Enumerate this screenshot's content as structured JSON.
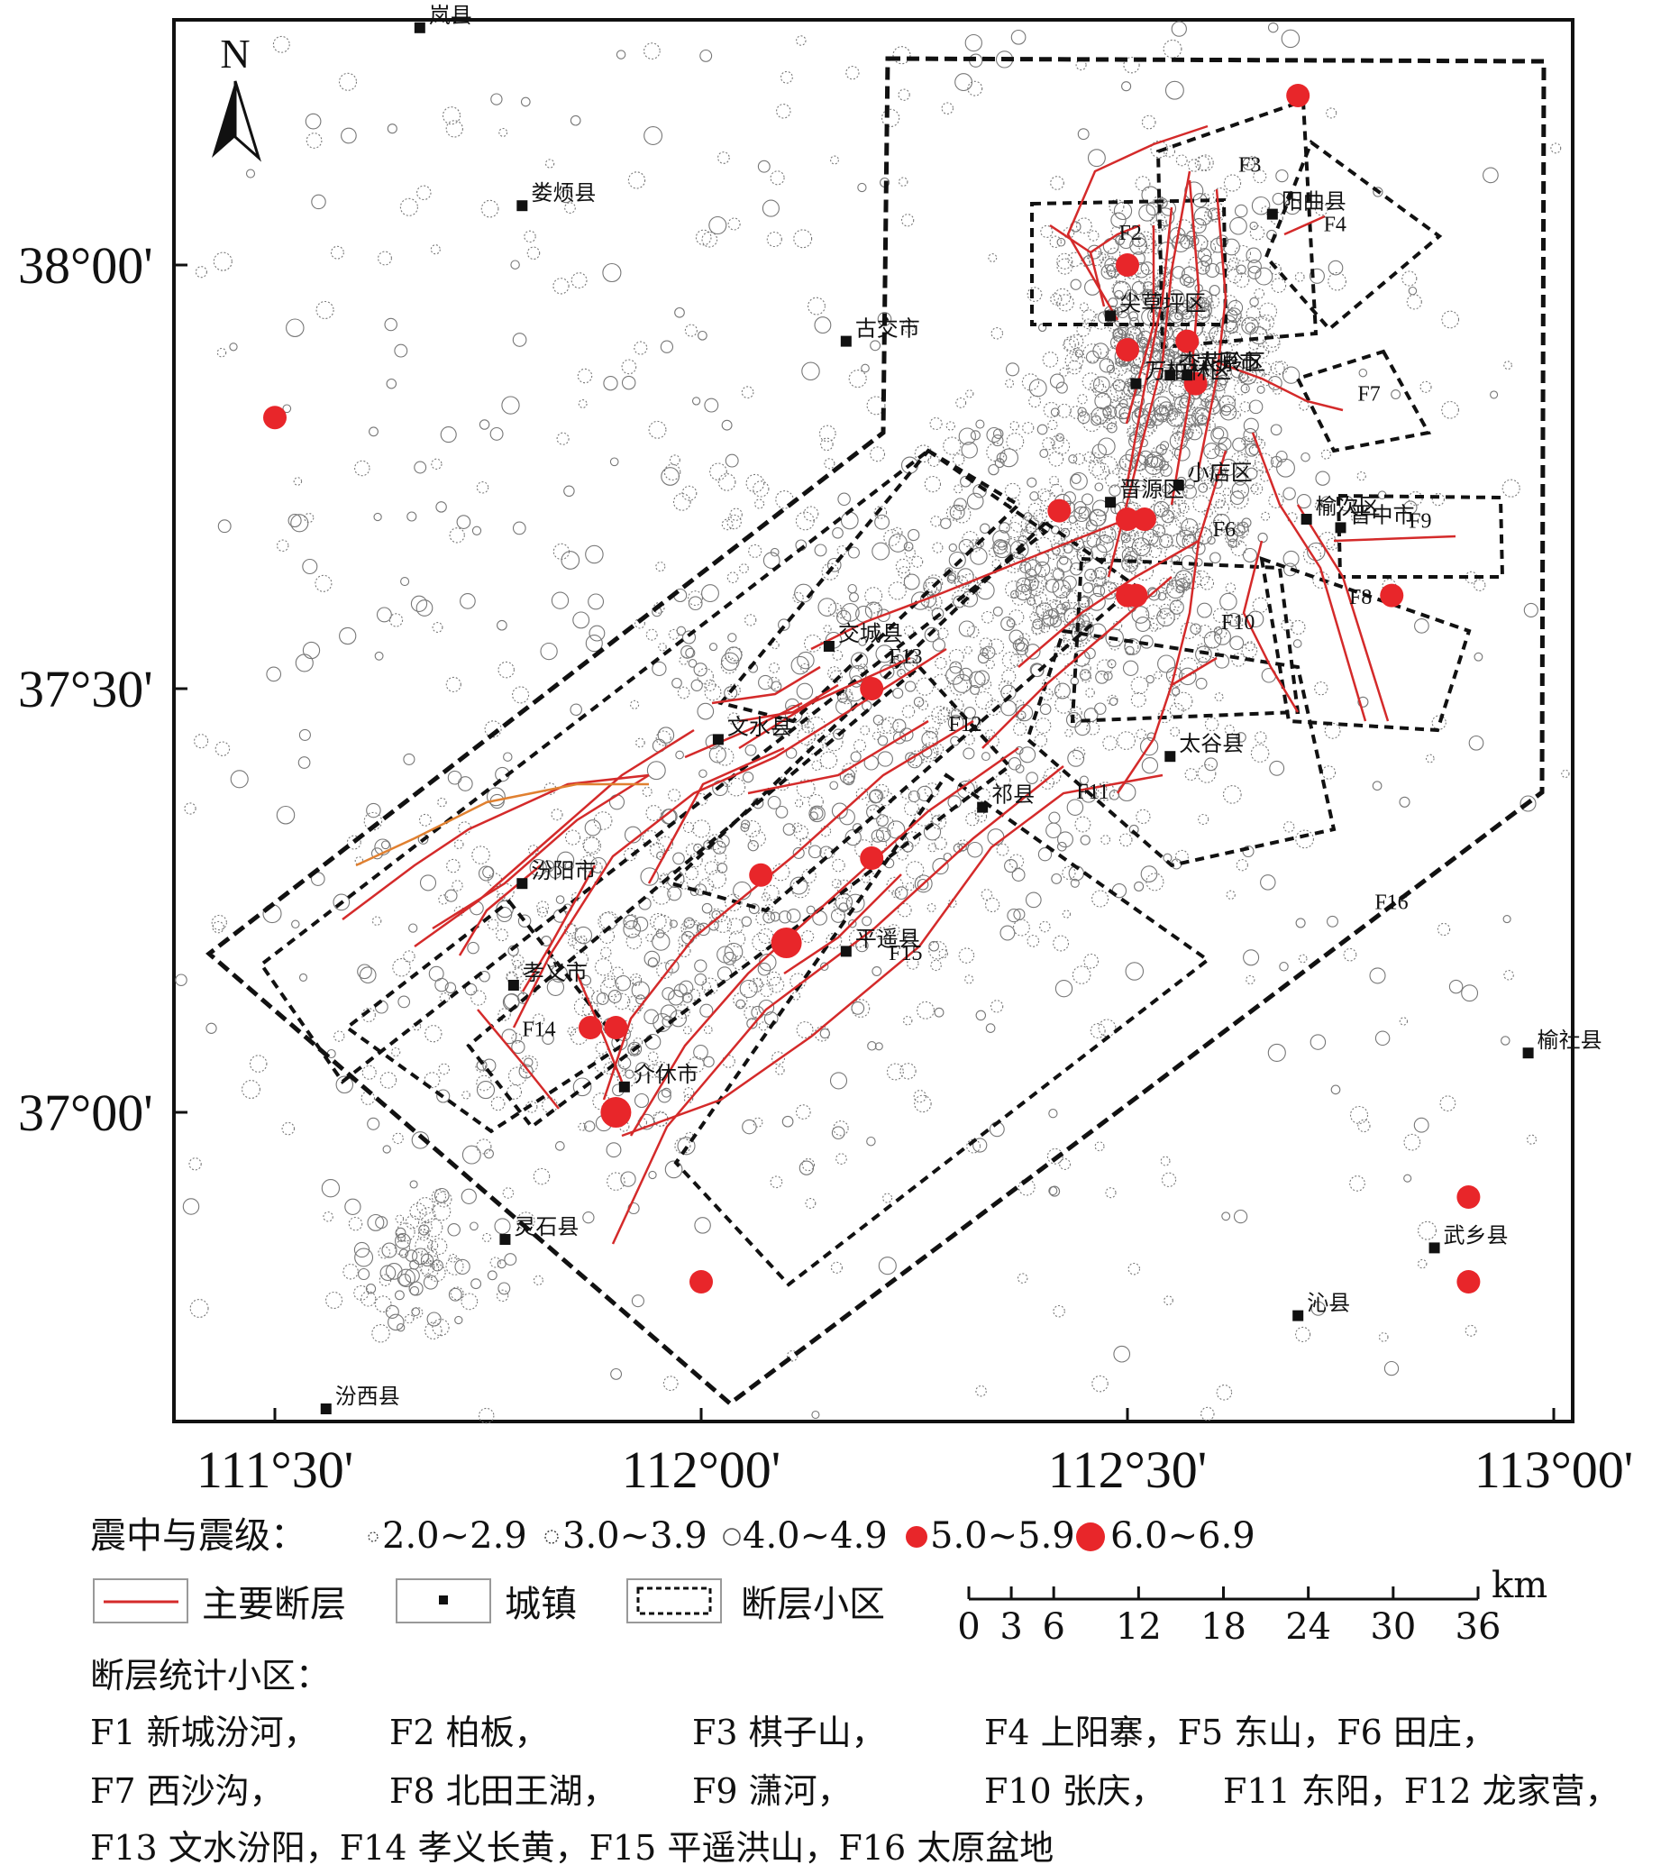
{
  "north_label": "N",
  "lat_labels": [
    {
      "text": "38°00'",
      "lat": 38.0
    },
    {
      "text": "37°30'",
      "lat": 37.5
    },
    {
      "text": "37°00'",
      "lat": 37.0
    }
  ],
  "lon_labels": [
    {
      "text": "111°30'",
      "lon": 111.5
    },
    {
      "text": "112°00'",
      "lon": 112.0
    },
    {
      "text": "112°30'",
      "lon": 112.5
    },
    {
      "text": "113°00'",
      "lon": 113.0
    }
  ],
  "towns": [
    {
      "name": "岚县",
      "lon": 111.67,
      "lat": 38.28
    },
    {
      "name": "娄烦县",
      "lon": 111.79,
      "lat": 38.07
    },
    {
      "name": "古交市",
      "lon": 112.17,
      "lat": 37.91
    },
    {
      "name": "阳曲县",
      "lon": 112.67,
      "lat": 38.06
    },
    {
      "name": "尖草坪区",
      "lon": 112.48,
      "lat": 37.94
    },
    {
      "name": "杏花岭区",
      "lon": 112.55,
      "lat": 37.87
    },
    {
      "name": "太原市",
      "lon": 112.57,
      "lat": 37.87
    },
    {
      "name": "万柏林区",
      "lon": 112.51,
      "lat": 37.86
    },
    {
      "name": "小店区",
      "lon": 112.56,
      "lat": 37.74
    },
    {
      "name": "晋源区",
      "lon": 112.48,
      "lat": 37.72
    },
    {
      "name": "榆次区",
      "lon": 112.71,
      "lat": 37.7
    },
    {
      "name": "晋中市",
      "lon": 112.75,
      "lat": 37.69
    },
    {
      "name": "交城县",
      "lon": 112.15,
      "lat": 37.55
    },
    {
      "name": "文水县",
      "lon": 112.02,
      "lat": 37.44
    },
    {
      "name": "太谷县",
      "lon": 112.55,
      "lat": 37.42
    },
    {
      "name": "祁县",
      "lon": 112.33,
      "lat": 37.36
    },
    {
      "name": "汾阳市",
      "lon": 111.79,
      "lat": 37.27
    },
    {
      "name": "平遥县",
      "lon": 112.17,
      "lat": 37.19
    },
    {
      "name": "孝义市",
      "lon": 111.78,
      "lat": 37.15
    },
    {
      "name": "介休市",
      "lon": 111.91,
      "lat": 37.03
    },
    {
      "name": "榆社县",
      "lon": 112.97,
      "lat": 37.07
    },
    {
      "name": "灵石县",
      "lon": 111.77,
      "lat": 36.85
    },
    {
      "name": "武乡县",
      "lon": 112.86,
      "lat": 36.84
    },
    {
      "name": "沁县",
      "lon": 112.7,
      "lat": 36.76
    },
    {
      "name": "汾西县",
      "lon": 111.56,
      "lat": 36.65
    }
  ],
  "fault_zone_labels": [
    {
      "text": "F2",
      "lon": 112.49,
      "lat": 38.03
    },
    {
      "text": "F3",
      "lon": 112.63,
      "lat": 38.11
    },
    {
      "text": "F4",
      "lon": 112.73,
      "lat": 38.04
    },
    {
      "text": "F6",
      "lon": 112.6,
      "lat": 37.68
    },
    {
      "text": "F7",
      "lon": 112.77,
      "lat": 37.84
    },
    {
      "text": "F8",
      "lon": 112.76,
      "lat": 37.6
    },
    {
      "text": "F9",
      "lon": 112.83,
      "lat": 37.69
    },
    {
      "text": "F10",
      "lon": 112.61,
      "lat": 37.57
    },
    {
      "text": "F11",
      "lon": 112.44,
      "lat": 37.37
    },
    {
      "text": "F12",
      "lon": 112.29,
      "lat": 37.45
    },
    {
      "text": "F13",
      "lon": 112.22,
      "lat": 37.53
    },
    {
      "text": "F14",
      "lon": 111.79,
      "lat": 37.09
    },
    {
      "text": "F15",
      "lon": 112.22,
      "lat": 37.18
    },
    {
      "text": "F16",
      "lon": 112.79,
      "lat": 37.24
    }
  ],
  "strong_quakes": [
    {
      "lon": 112.7,
      "lat": 38.2,
      "mag": "5.0~5.9"
    },
    {
      "lon": 112.5,
      "lat": 38.0,
      "mag": "5.0~5.9"
    },
    {
      "lon": 112.5,
      "lat": 37.9,
      "mag": "5.0~5.9"
    },
    {
      "lon": 112.57,
      "lat": 37.91,
      "mag": "5.0~5.9"
    },
    {
      "lon": 112.58,
      "lat": 37.86,
      "mag": "5.0~5.9"
    },
    {
      "lon": 111.5,
      "lat": 37.82,
      "mag": "5.0~5.9"
    },
    {
      "lon": 112.42,
      "lat": 37.71,
      "mag": "5.0~5.9"
    },
    {
      "lon": 112.5,
      "lat": 37.7,
      "mag": "5.0~5.9"
    },
    {
      "lon": 112.52,
      "lat": 37.7,
      "mag": "5.0~5.9"
    },
    {
      "lon": 112.5,
      "lat": 37.61,
      "mag": "5.0~5.9"
    },
    {
      "lon": 112.51,
      "lat": 37.61,
      "mag": "5.0~5.9"
    },
    {
      "lon": 112.81,
      "lat": 37.61,
      "mag": "5.0~5.9"
    },
    {
      "lon": 112.2,
      "lat": 37.5,
      "mag": "5.0~5.9"
    },
    {
      "lon": 112.07,
      "lat": 37.28,
      "mag": "5.0~5.9"
    },
    {
      "lon": 112.2,
      "lat": 37.3,
      "mag": "5.0~5.9"
    },
    {
      "lon": 112.1,
      "lat": 37.2,
      "mag": "6.0~6.9"
    },
    {
      "lon": 111.87,
      "lat": 37.1,
      "mag": "5.0~5.9"
    },
    {
      "lon": 111.9,
      "lat": 37.1,
      "mag": "5.0~5.9"
    },
    {
      "lon": 111.9,
      "lat": 37.0,
      "mag": "6.0~6.9"
    },
    {
      "lon": 112.0,
      "lat": 36.8,
      "mag": "5.0~5.9"
    },
    {
      "lon": 112.9,
      "lat": 36.9,
      "mag": "5.0~5.9"
    },
    {
      "lon": 112.9,
      "lat": 36.8,
      "mag": "5.0~5.9"
    }
  ],
  "scale_bar": {
    "unit": "km",
    "ticks": [
      "0",
      "3",
      "6",
      "12",
      "18",
      "24",
      "30",
      "36"
    ]
  },
  "legend": {
    "epicenter_title": "震中与震级：",
    "magnitude_classes": [
      "2.0~2.9",
      "3.0~3.9",
      "4.0~4.9",
      "5.0~5.9",
      "6.0~6.9"
    ],
    "fault_label": "主要断层",
    "town_label": "城镇",
    "zone_label": "断层小区"
  },
  "zones_title": "断层统计小区：",
  "zones_lines": [
    [
      "F1 新城汾河，",
      "F2 柏板，",
      "F3 棋子山，",
      "F4 上阳寨，F5 东山，F6 田庄，"
    ],
    [
      "F7 西沙沟，",
      "F8 北田王湖，",
      "F9 潇河，",
      "F10 张庆，",
      "F11 东阳，F12 龙家营，"
    ],
    [
      "F13 文水汾阳，F14 孝义长黄，F15 平遥洪山，F16 太原盆地"
    ]
  ],
  "colors": {
    "fault": "#d42a2a",
    "strong_quake": "#e8262a",
    "frame": "#111111",
    "small_quake": "#777777"
  }
}
